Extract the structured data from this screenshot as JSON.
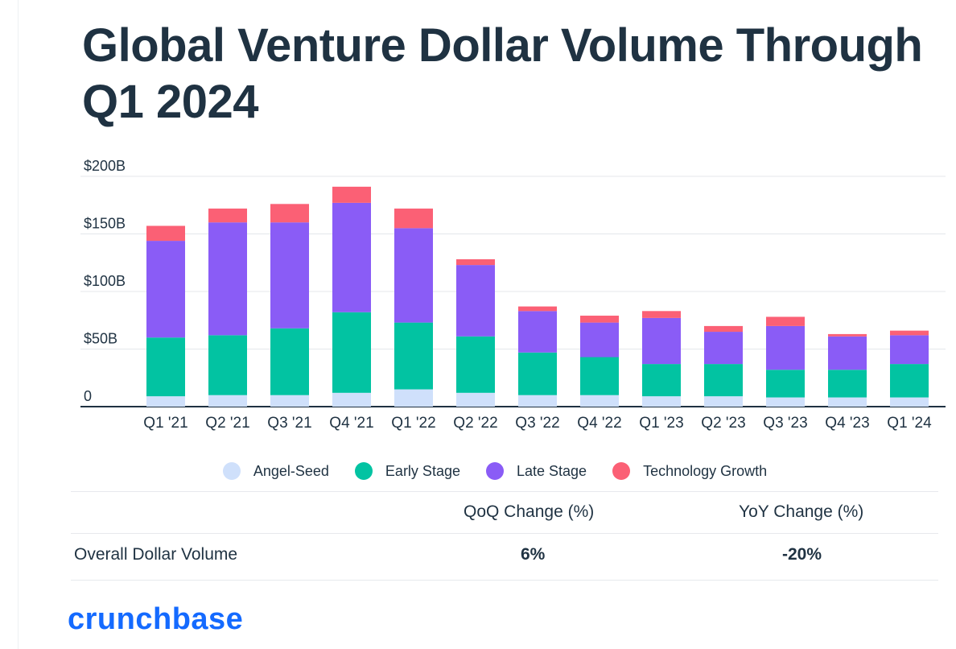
{
  "title": "Global Venture Dollar Volume Through Q1 2024",
  "chart_data": {
    "type": "bar",
    "stacked": true,
    "title": "Global Venture Dollar Volume Through Q1 2024",
    "xlabel": "",
    "ylabel": "",
    "ylim": [
      0,
      200
    ],
    "yticks": [
      0,
      50,
      100,
      150,
      200
    ],
    "ytick_labels": [
      "0",
      "$50B",
      "$100B",
      "$150B",
      "$200B"
    ],
    "grid": true,
    "legend_position": "bottom",
    "categories": [
      "Q1 '21",
      "Q2 '21",
      "Q3 '21",
      "Q4 '21",
      "Q1 '22",
      "Q2 '22",
      "Q3 '22",
      "Q4 '22",
      "Q1 '23",
      "Q2 '23",
      "Q3 '23",
      "Q4 '23",
      "Q1 '24"
    ],
    "series": [
      {
        "name": "Angel-Seed",
        "color": "#cfe0fb",
        "values": [
          9,
          10,
          10,
          12,
          15,
          12,
          10,
          10,
          9,
          9,
          8,
          8,
          8
        ]
      },
      {
        "name": "Early Stage",
        "color": "#02c3a2",
        "values": [
          51,
          52,
          58,
          70,
          58,
          49,
          37,
          33,
          28,
          28,
          24,
          24,
          29
        ]
      },
      {
        "name": "Late Stage",
        "color": "#8a5cf6",
        "values": [
          84,
          98,
          92,
          95,
          82,
          62,
          36,
          30,
          40,
          28,
          38,
          29,
          25
        ]
      },
      {
        "name": "Technology Growth",
        "color": "#fb6075",
        "values": [
          13,
          12,
          16,
          14,
          17,
          5,
          4,
          6,
          6,
          5,
          8,
          2,
          4
        ]
      }
    ]
  },
  "table": {
    "headers": [
      "QoQ Change (%)",
      "YoY Change (%)"
    ],
    "row_label": "Overall Dollar Volume",
    "qoq": "6%",
    "yoy": "-20%"
  },
  "brand": "crunchbase"
}
